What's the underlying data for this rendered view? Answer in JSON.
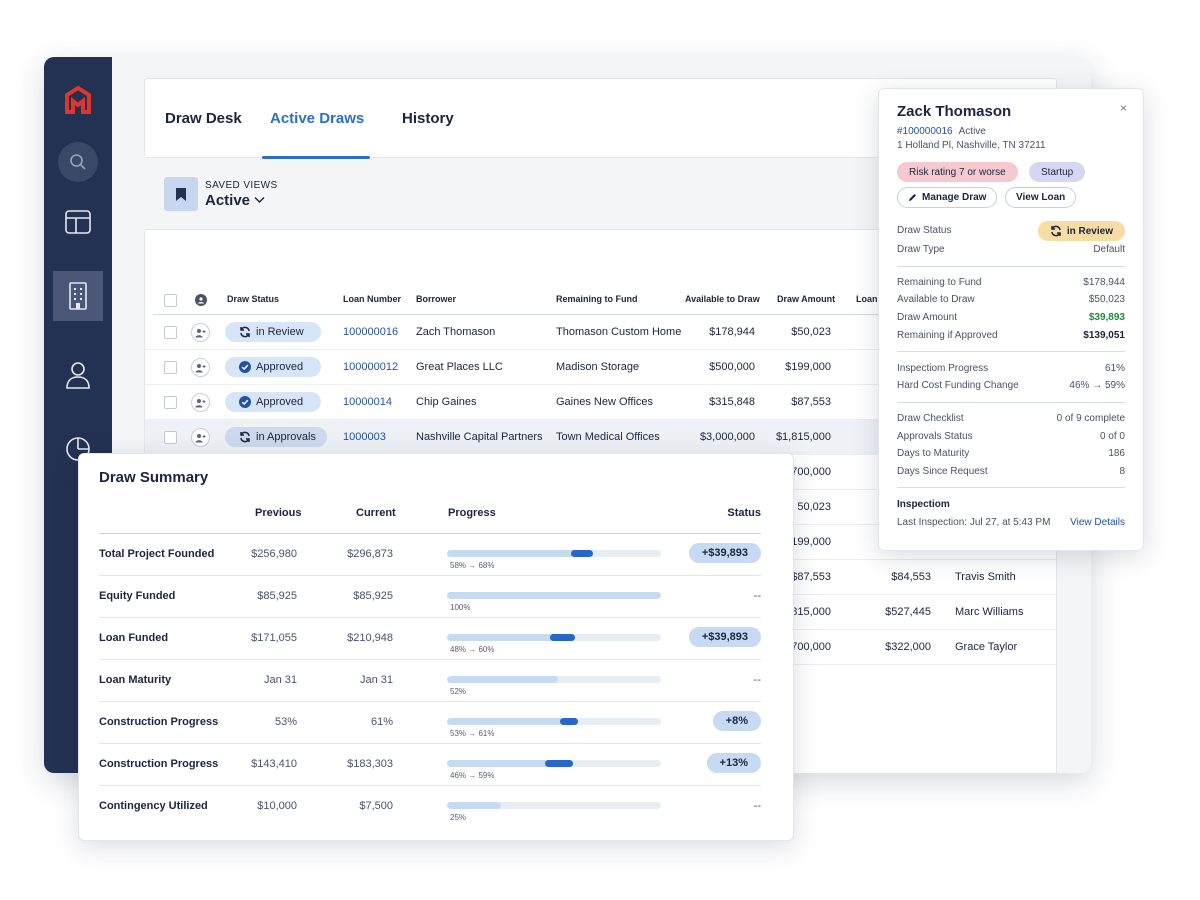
{
  "colors": {
    "sidebar": "#233152",
    "accent": "#2a6fc9",
    "logo": "#e0352b",
    "positive": "#1f8a3a"
  },
  "sidebar": {
    "items": [
      {
        "icon": "logo-icon"
      },
      {
        "icon": "search-icon"
      },
      {
        "icon": "layout-icon"
      },
      {
        "icon": "building-icon",
        "active": true
      },
      {
        "icon": "user-icon"
      },
      {
        "icon": "pie-chart-icon"
      }
    ]
  },
  "tabs": [
    {
      "label": "Draw Desk"
    },
    {
      "label": "Active Draws",
      "active": true
    },
    {
      "label": "History"
    }
  ],
  "saved_views": {
    "label": "SAVED VIEWS",
    "value": "Active"
  },
  "table": {
    "columns": [
      "Draw Status",
      "Loan Number",
      "Borrower",
      "Remaining to Fund",
      "Available to Draw",
      "Draw Amount",
      "Loan"
    ],
    "rows": [
      {
        "status": "in Review",
        "status_icon": "refresh-icon",
        "loan": "100000016",
        "borrower": "Zach Thomason",
        "project": "Thomason Custom Home",
        "available": "$178,944",
        "draw": "$50,023",
        "col7": "",
        "col8": ""
      },
      {
        "status": "Approved",
        "status_icon": "check-circle-icon",
        "loan": "100000012",
        "borrower": "Great Places LLC",
        "project": "Madison Storage",
        "available": "$500,000",
        "draw": "$199,000",
        "col7": "",
        "col8": ""
      },
      {
        "status": "Approved",
        "status_icon": "check-circle-icon",
        "loan": "10000014",
        "borrower": "Chip Gaines",
        "project": "Gaines New Offices",
        "available": "$315,848",
        "draw": "$87,553",
        "col7": "",
        "col8": ""
      },
      {
        "status": "in Approvals",
        "status_icon": "refresh-icon",
        "loan": "1000003",
        "borrower": "Nashville Capital Partners",
        "project": "Town Medical Offices",
        "available": "$3,000,000",
        "draw": "$1,815,000",
        "col7": "",
        "col8": ""
      },
      {
        "draw": "700,000",
        "col7": "",
        "col8": ""
      },
      {
        "draw": "50,023",
        "col7": "",
        "col8": ""
      },
      {
        "draw": "199,000",
        "col7": "",
        "col8": ""
      },
      {
        "draw": "$87,553",
        "col7": "$84,553",
        "col8": "Travis Smith"
      },
      {
        "draw": "815,000",
        "col7": "$527,445",
        "col8": "Marc Williams"
      },
      {
        "draw": "700,000",
        "col7": "$322,000",
        "col8": "Grace Taylor"
      }
    ]
  },
  "summary": {
    "title": "Draw Summary",
    "headers": {
      "previous": "Previous",
      "current": "Current",
      "progress": "Progress",
      "status": "Status"
    },
    "rows": [
      {
        "label": "Total Project Founded",
        "previous": "$256,980",
        "current": "$296,873",
        "from": 0.58,
        "to": 0.68,
        "note": "58% → 68%",
        "change": "+$39,893"
      },
      {
        "label": "Equity Funded",
        "previous": "$85,925",
        "current": "$85,925",
        "from": 1.0,
        "to": 1.0,
        "note": "100%",
        "change": "--"
      },
      {
        "label": "Loan Funded",
        "previous": "$171,055",
        "current": "$210,948",
        "from": 0.48,
        "to": 0.6,
        "note": "48% → 60%",
        "change": "+$39,893"
      },
      {
        "label": "Loan Maturity",
        "previous": "Jan 31",
        "current": "Jan 31",
        "from": 0.52,
        "to": 0.52,
        "note": "52%",
        "change": "--"
      },
      {
        "label": "Construction Progress",
        "previous": "53%",
        "current": "61%",
        "from": 0.53,
        "to": 0.61,
        "note": "53% → 61%",
        "change": "+8%"
      },
      {
        "label": "Construction Progress",
        "previous": "$143,410",
        "current": "$183,303",
        "from": 0.46,
        "to": 0.59,
        "note": "46% → 59%",
        "change": "+13%"
      },
      {
        "label": "Contingency Utilized",
        "previous": "$10,000",
        "current": "$7,500",
        "from": 0.25,
        "to": 0.25,
        "note": "25%",
        "change": "--"
      }
    ]
  },
  "detail": {
    "name": "Zack Thomason",
    "close": "×",
    "loan_number": "#100000016",
    "loan_status": "Active",
    "address": "1 Holland Pl, Nashville, TN 37211",
    "tags": [
      "Risk rating 7 or worse",
      "Startup"
    ],
    "buttons": {
      "manage": "Manage Draw",
      "view": "View Loan"
    },
    "draw_status_label": "Draw Status",
    "draw_status": "in Review",
    "draw_type_label": "Draw Type",
    "draw_type": "Default",
    "funding": [
      {
        "k": "Remaining to Fund",
        "v": "$178,944"
      },
      {
        "k": "Available to Draw",
        "v": "$50,023"
      },
      {
        "k": "Draw Amount",
        "v": "$39,893"
      },
      {
        "k": "Remaining if Approved",
        "v": "$139,051"
      }
    ],
    "progress": [
      {
        "k": "Inspectiom Progress",
        "v": "61%"
      },
      {
        "k": "Hard Cost Funding Change",
        "v": "46% → 59%"
      }
    ],
    "checklist": [
      {
        "k": "Draw Checklist",
        "v": "0 of 9 complete"
      },
      {
        "k": "Approvals Status",
        "v": "0 of 0"
      },
      {
        "k": "Days to Maturity",
        "v": "186"
      },
      {
        "k": "Days Since Request",
        "v": "8"
      }
    ],
    "inspection": {
      "heading": "Inspectiom",
      "last": "Last Inspection: Jul 27, at 5:43 PM",
      "link": "View Details"
    }
  }
}
